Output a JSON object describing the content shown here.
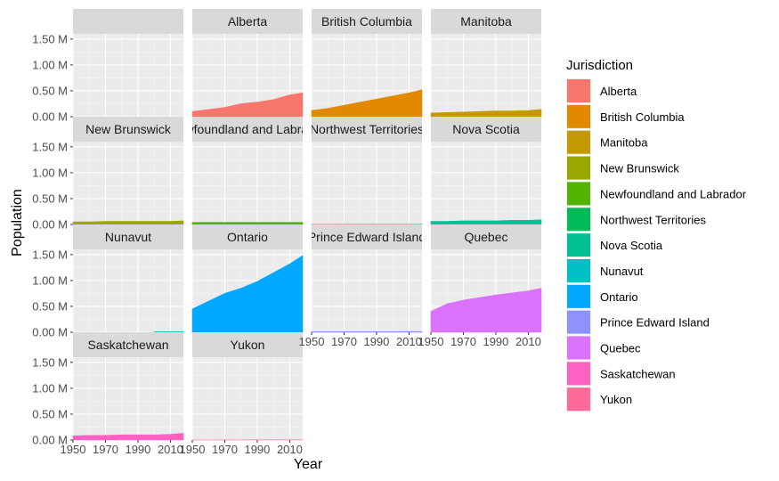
{
  "chart_data": {
    "type": "area",
    "facet": "wrap",
    "ncol": 4,
    "xlabel": "Year",
    "ylabel": "Population",
    "y_ticks": [
      "0.00 M",
      "0.50 M",
      "1.00 M",
      "1.50 M"
    ],
    "y_tick_values": [
      0,
      0.5,
      1.0,
      1.5
    ],
    "x_ticks": [
      "1950",
      "1970",
      "1990",
      "2010"
    ],
    "x_tick_values": [
      1950,
      1970,
      1990,
      2010
    ],
    "xlim": [
      1950,
      2018
    ],
    "ylim": [
      0,
      1.6
    ],
    "legend": {
      "title": "Jurisdiction",
      "position": "right"
    },
    "x": [
      1950,
      1960,
      1970,
      1980,
      1990,
      2000,
      2010,
      2018
    ],
    "empty_panel": true,
    "series": [
      {
        "name": "Alberta",
        "color": "#F8766D",
        "values": [
          0.1,
          0.14,
          0.18,
          0.25,
          0.28,
          0.33,
          0.42,
          0.46
        ]
      },
      {
        "name": "British Columbia",
        "color": "#E38900",
        "values": [
          0.12,
          0.16,
          0.22,
          0.28,
          0.34,
          0.4,
          0.46,
          0.52
        ]
      },
      {
        "name": "Manitoba",
        "color": "#C49A00",
        "values": [
          0.07,
          0.08,
          0.09,
          0.1,
          0.11,
          0.11,
          0.12,
          0.14
        ]
      },
      {
        "name": "New Brunswick",
        "color": "#99A800",
        "values": [
          0.05,
          0.05,
          0.06,
          0.06,
          0.06,
          0.06,
          0.06,
          0.07
        ]
      },
      {
        "name": "Newfoundland and Labrador",
        "color": "#53B400",
        "values": [
          0.04,
          0.04,
          0.04,
          0.04,
          0.04,
          0.04,
          0.04,
          0.04
        ]
      },
      {
        "name": "Northwest Territories",
        "color": "#00BC56",
        "values": [
          0.002,
          0.002,
          0.003,
          0.003,
          0.003,
          0.003,
          0.003,
          0.003
        ]
      },
      {
        "name": "Nova Scotia",
        "color": "#00C094",
        "values": [
          0.06,
          0.06,
          0.07,
          0.07,
          0.07,
          0.08,
          0.08,
          0.09
        ]
      },
      {
        "name": "Nunavut",
        "color": "#00BFC4",
        "values": [
          null,
          null,
          null,
          null,
          null,
          0.01,
          0.01,
          0.01
        ]
      },
      {
        "name": "Ontario",
        "color": "#00A9FF",
        "values": [
          0.45,
          0.6,
          0.75,
          0.85,
          0.98,
          1.15,
          1.32,
          1.48
        ]
      },
      {
        "name": "Prince Edward Island",
        "color": "#8F91FF",
        "values": [
          0.012,
          0.012,
          0.012,
          0.013,
          0.013,
          0.013,
          0.014,
          0.015
        ]
      },
      {
        "name": "Quebec",
        "color": "#DB72FB",
        "values": [
          0.4,
          0.55,
          0.62,
          0.67,
          0.72,
          0.76,
          0.8,
          0.85
        ]
      },
      {
        "name": "Saskatchewan",
        "color": "#FF61C3",
        "values": [
          0.08,
          0.09,
          0.09,
          0.1,
          0.1,
          0.1,
          0.11,
          0.13
        ]
      },
      {
        "name": "Yukon",
        "color": "#FF6A98",
        "values": [
          0.001,
          0.001,
          0.002,
          0.002,
          0.003,
          0.003,
          0.003,
          0.004
        ]
      }
    ]
  }
}
